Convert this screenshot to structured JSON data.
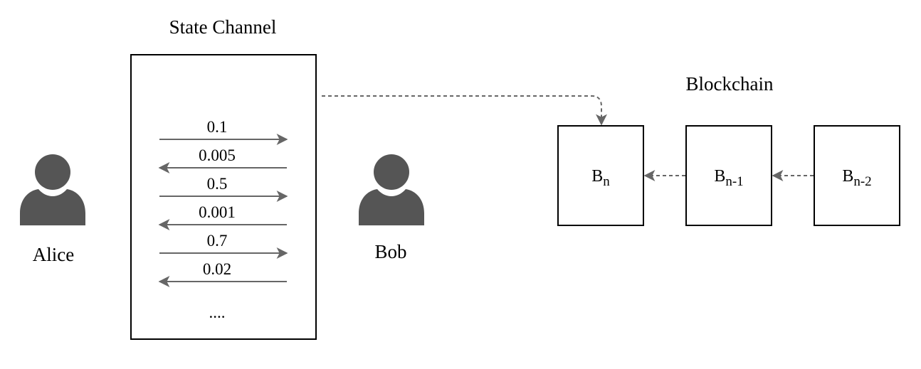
{
  "state_channel": {
    "title": "State Channel",
    "transactions": [
      {
        "amount": "0.1",
        "direction": "right"
      },
      {
        "amount": "0.005",
        "direction": "left"
      },
      {
        "amount": "0.5",
        "direction": "right"
      },
      {
        "amount": "0.001",
        "direction": "left"
      },
      {
        "amount": "0.7",
        "direction": "right"
      },
      {
        "amount": "0.02",
        "direction": "left"
      }
    ],
    "ellipsis": "...."
  },
  "participants": {
    "alice": {
      "name": "Alice",
      "icon": "user-icon"
    },
    "bob": {
      "name": "Bob",
      "icon": "user-icon"
    }
  },
  "blockchain": {
    "title": "Blockchain",
    "blocks": [
      {
        "base": "B",
        "sub": "n"
      },
      {
        "base": "B",
        "sub": "n-1"
      },
      {
        "base": "B",
        "sub": "n-2"
      }
    ]
  },
  "colors": {
    "stroke": "#000000",
    "icon": "#555555",
    "arrow": "#666666"
  }
}
